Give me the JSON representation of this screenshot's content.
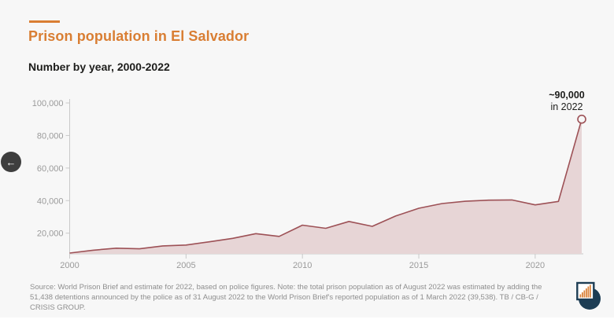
{
  "page": {
    "background": "#f7f7f7",
    "accent_orange": "#d97e33"
  },
  "header": {
    "title": "Prison population in El Salvador",
    "subtitle": "Number by year, 2000-2022"
  },
  "carousel": {
    "prev_icon": "←"
  },
  "chart_data": {
    "type": "area",
    "title": "Prison population in El Salvador",
    "subtitle": "Number by year, 2000-2022",
    "x": [
      2000,
      2001,
      2002,
      2003,
      2004,
      2005,
      2006,
      2007,
      2008,
      2009,
      2010,
      2011,
      2012,
      2013,
      2014,
      2015,
      2016,
      2017,
      2018,
      2019,
      2020,
      2021,
      2022
    ],
    "values": [
      7800,
      9500,
      10800,
      10400,
      12200,
      12700,
      14700,
      16800,
      19700,
      18000,
      24900,
      23000,
      27200,
      24200,
      30500,
      35300,
      38200,
      39600,
      40300,
      40400,
      37400,
      39500,
      90000
    ],
    "x_ticks": [
      2000,
      2005,
      2010,
      2015,
      2020
    ],
    "y_ticks": [
      20000,
      40000,
      60000,
      80000,
      100000
    ],
    "ylim": [
      7300,
      100000
    ],
    "grid": "off",
    "legend": "none",
    "annotation": {
      "value": "~90,000",
      "year": "in 2022"
    },
    "end_marker": "open-circle",
    "line_color": "#9d5156",
    "fill_color": "#e7d5d6",
    "axis_color": "#c9c9c9",
    "tick_label_color": "#9a9a9a"
  },
  "footer": {
    "source_note": "Source: World Prison Brief and estimate for 2022, based on police figures. Note: the total prison population as of August 2022 was estimated by adding the 51,438 detentions announced by the police as of 31 August 2022 to the World Prison Brief's reported population as of 1 March 2022 (39,538). TB / CB-G / CRISIS GROUP.",
    "logo": "datawrapper-logo"
  }
}
